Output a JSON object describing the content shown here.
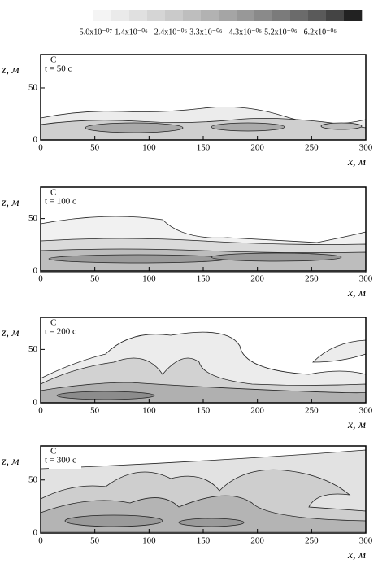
{
  "colorbar": {
    "clim": [
      4.4e-07,
      7.26e-06
    ],
    "colors": [
      "#f4f4f4",
      "#eaeaea",
      "#e0e0e0",
      "#d5d5d5",
      "#cacaca",
      "#bebebe",
      "#b2b2b2",
      "#a5a5a5",
      "#989898",
      "#8a8a8a",
      "#7b7b7b",
      "#6b6b6b",
      "#5a5a5a",
      "#444444",
      "#222222"
    ],
    "ticks": [
      {
        "value": 5e-07,
        "label": "5.0x10⁻⁰⁷"
      },
      {
        "value": 1.4e-06,
        "label": "1.4x10⁻⁰⁶"
      },
      {
        "value": 2.4e-06,
        "label": "2.4x10⁻⁰⁶"
      },
      {
        "value": 3.3e-06,
        "label": "3.3x10⁻⁰⁶"
      },
      {
        "value": 4.3e-06,
        "label": "4.3x10⁻⁰⁶"
      },
      {
        "value": 5.2e-06,
        "label": "5.2x10⁻⁰⁶"
      },
      {
        "value": 6.2e-06,
        "label": "6.2x10⁻⁰⁶"
      }
    ]
  },
  "chart_data": [
    {
      "type": "contour",
      "annotations": [
        "C",
        "t = 50 c"
      ],
      "xlabel": "x, м",
      "ylabel": "z, м",
      "xlim": [
        0,
        300
      ],
      "xticks": [
        0,
        50,
        100,
        150,
        200,
        250,
        300
      ],
      "ylim": [
        0,
        82
      ],
      "yticks": [
        0,
        50
      ]
    },
    {
      "type": "contour",
      "annotations": [
        "C",
        "t = 100 c"
      ],
      "xlabel": "x, м",
      "ylabel": "z, м",
      "xlim": [
        0,
        300
      ],
      "xticks": [
        0,
        50,
        100,
        150,
        200,
        250,
        300
      ],
      "ylim": [
        0,
        80
      ],
      "yticks": [
        0,
        50
      ]
    },
    {
      "type": "contour",
      "annotations": [
        "C",
        "t = 200 c"
      ],
      "xlabel": "x, м",
      "ylabel": "z, м",
      "xlim": [
        0,
        300
      ],
      "xticks": [
        0,
        50,
        100,
        150,
        200,
        250,
        300
      ],
      "ylim": [
        0,
        80
      ],
      "yticks": [
        0,
        50
      ]
    },
    {
      "type": "contour",
      "annotations": [
        "C",
        "t = 300 c"
      ],
      "xlabel": "x, м",
      "ylabel": "z, м",
      "xlim": [
        0,
        300
      ],
      "xticks": [
        0,
        50,
        100,
        150,
        200,
        250,
        300
      ],
      "ylim": [
        0,
        82
      ],
      "yticks": [
        0,
        50
      ]
    }
  ]
}
